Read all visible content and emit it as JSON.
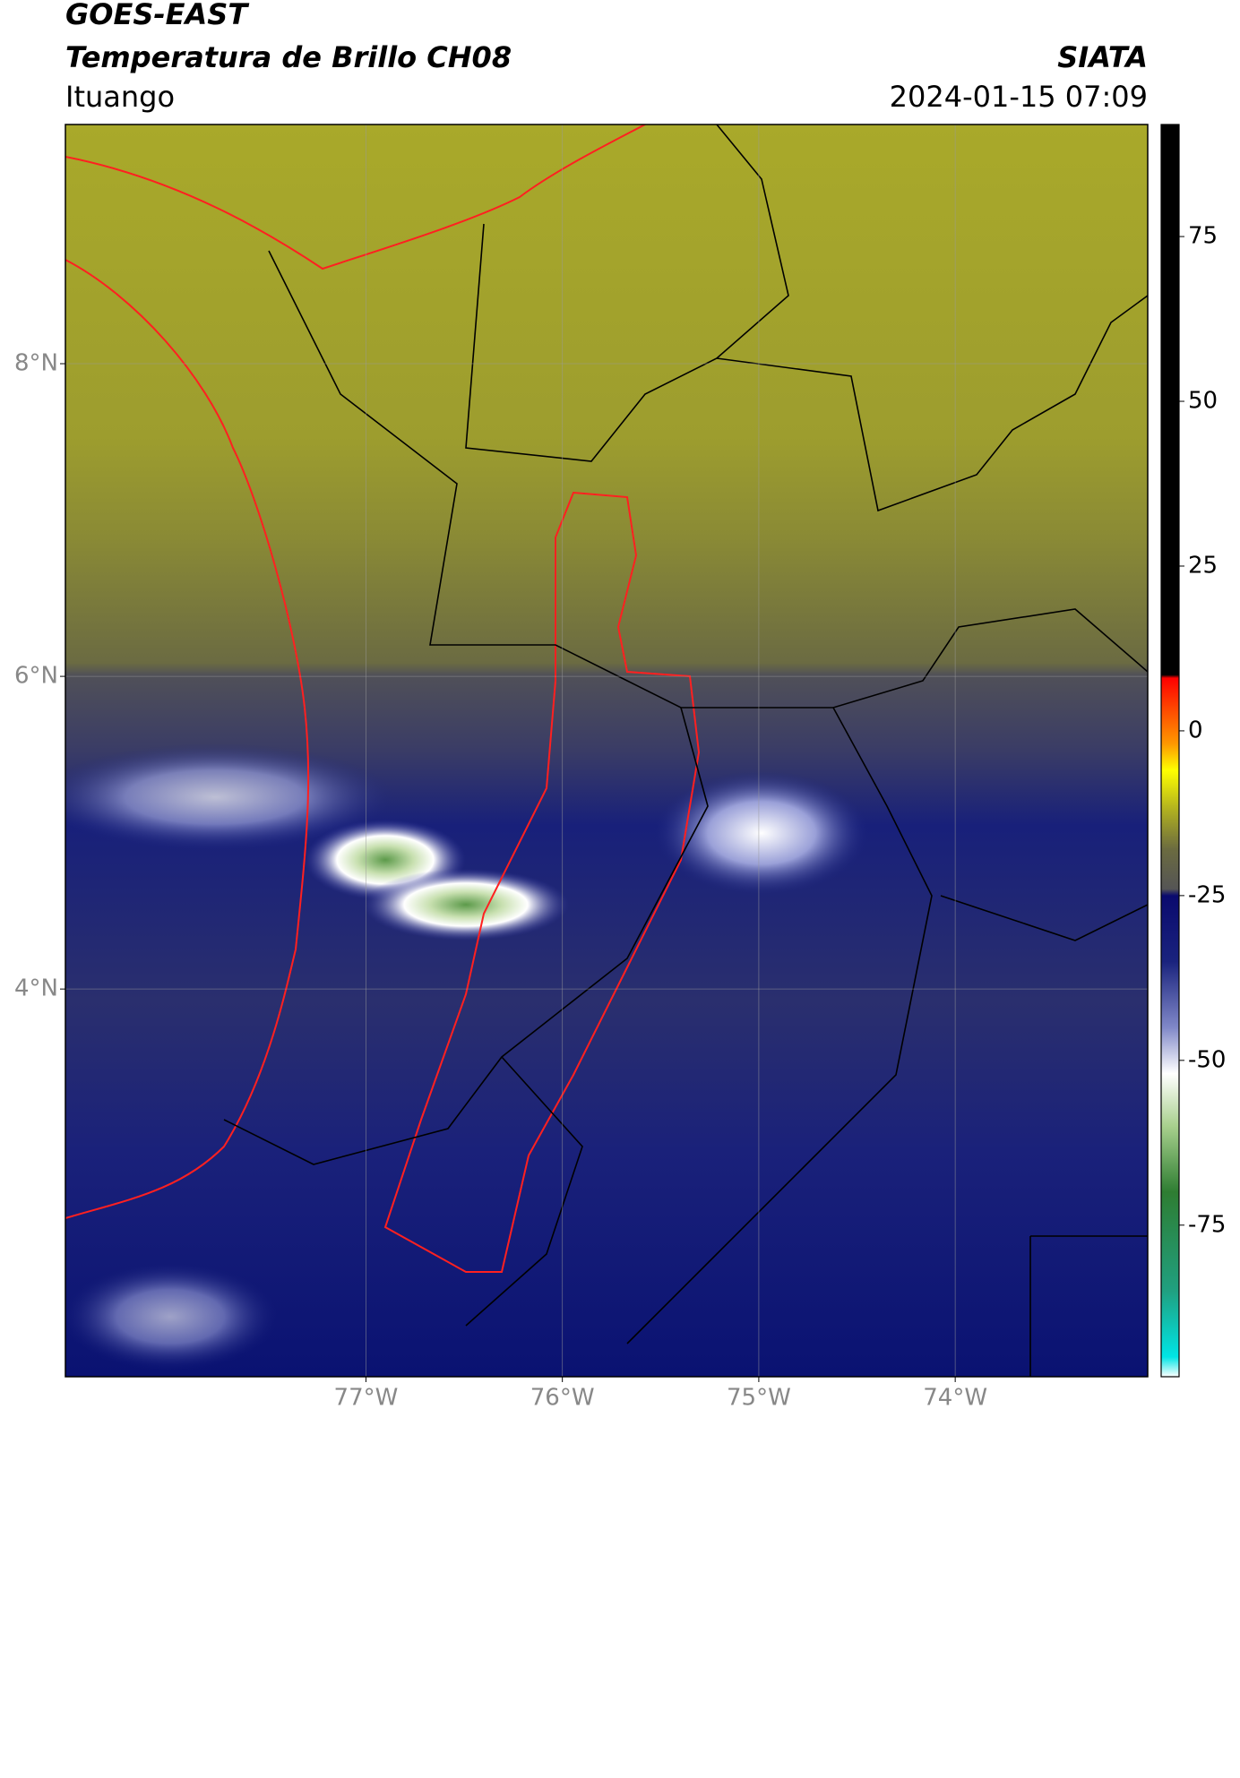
{
  "chart_data": {
    "type": "map",
    "title": "GOES-EAST",
    "subtitle": "Temperatura de Brillo CH08",
    "source": "SIATA",
    "region": "Ituango",
    "timestamp": "2024-01-15 07:09",
    "xlim": [
      -78.53,
      -73.02
    ],
    "ylim": [
      1.52,
      9.53
    ],
    "xticks": [
      {
        "value": -77,
        "label": "77°W"
      },
      {
        "value": -76,
        "label": "76°W"
      },
      {
        "value": -75,
        "label": "75°W"
      },
      {
        "value": -74,
        "label": "74°W"
      }
    ],
    "yticks": [
      {
        "value": 4,
        "label": "4°N"
      },
      {
        "value": 6,
        "label": "6°N"
      },
      {
        "value": 8,
        "label": "8°N"
      }
    ],
    "grid": true,
    "colorbar": {
      "lim": [
        -98,
        92
      ],
      "ticks": [
        -75,
        -50,
        -25,
        0,
        25,
        50,
        75
      ],
      "colormap": [
        [
          -98,
          "#ffffff"
        ],
        [
          -95,
          "#00e5e5"
        ],
        [
          -85,
          "#20a080"
        ],
        [
          -70,
          "#2e7d32"
        ],
        [
          -60,
          "#a8d08d"
        ],
        [
          -52,
          "#ffffff"
        ],
        [
          -45,
          "#8088c8"
        ],
        [
          -35,
          "#1a237e"
        ],
        [
          -25,
          "#0a0a6e"
        ],
        [
          -24,
          "#555555"
        ],
        [
          -18,
          "#6b6b40"
        ],
        [
          -12,
          "#b0b020"
        ],
        [
          -6,
          "#ffff00"
        ],
        [
          -2,
          "#ff9900"
        ],
        [
          8,
          "#ff0000"
        ],
        [
          8.5,
          "#000000"
        ],
        [
          92,
          "#000000"
        ]
      ]
    }
  }
}
